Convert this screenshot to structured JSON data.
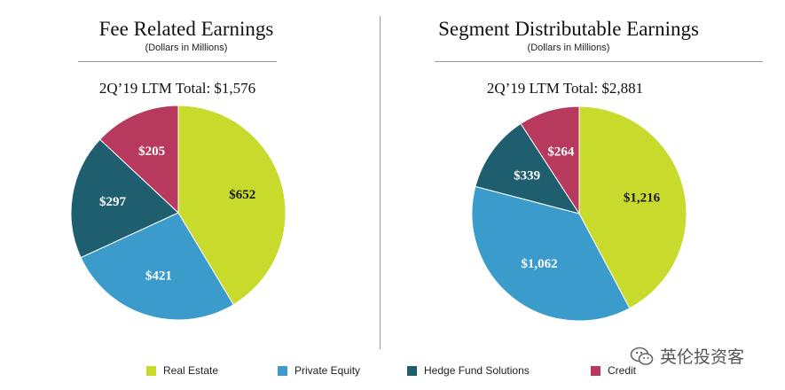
{
  "colors": {
    "real_estate": "#c8db2c",
    "private_equity": "#3b9ccc",
    "hedge_fund": "#1f5e6f",
    "credit": "#b73a5e"
  },
  "legend": [
    {
      "label": "Real Estate",
      "color": "#c8db2c"
    },
    {
      "label": "Private Equity",
      "color": "#3b9ccc"
    },
    {
      "label": "Hedge Fund Solutions",
      "color": "#1f5e6f"
    },
    {
      "label": "Credit",
      "color": "#b73a5e"
    }
  ],
  "watermark": {
    "text": "英伦投资客",
    "icon": "wechat-icon"
  },
  "chart_data": [
    {
      "type": "pie",
      "title": "Fee Related Earnings",
      "subtitle": "(Dollars in Millions)",
      "total_label": "2Q’19 LTM Total: $1,576",
      "slices": [
        {
          "name": "Real Estate",
          "value": 652,
          "label": "$652",
          "color": "#c8db2c"
        },
        {
          "name": "Private Equity",
          "value": 421,
          "label": "$421",
          "color": "#3b9ccc"
        },
        {
          "name": "Hedge Fund Solutions",
          "value": 297,
          "label": "$297",
          "color": "#1f5e6f"
        },
        {
          "name": "Credit",
          "value": 205,
          "label": "$205",
          "color": "#b73a5e"
        }
      ]
    },
    {
      "type": "pie",
      "title": "Segment Distributable Earnings",
      "subtitle": "(Dollars in Millions)",
      "total_label": "2Q’19 LTM Total: $2,881",
      "slices": [
        {
          "name": "Real Estate",
          "value": 1216,
          "label": "$1,216",
          "color": "#c8db2c"
        },
        {
          "name": "Private Equity",
          "value": 1062,
          "label": "$1,062",
          "color": "#3b9ccc"
        },
        {
          "name": "Hedge Fund Solutions",
          "value": 339,
          "label": "$339",
          "color": "#1f5e6f"
        },
        {
          "name": "Credit",
          "value": 264,
          "label": "$264",
          "color": "#b73a5e"
        }
      ]
    }
  ]
}
